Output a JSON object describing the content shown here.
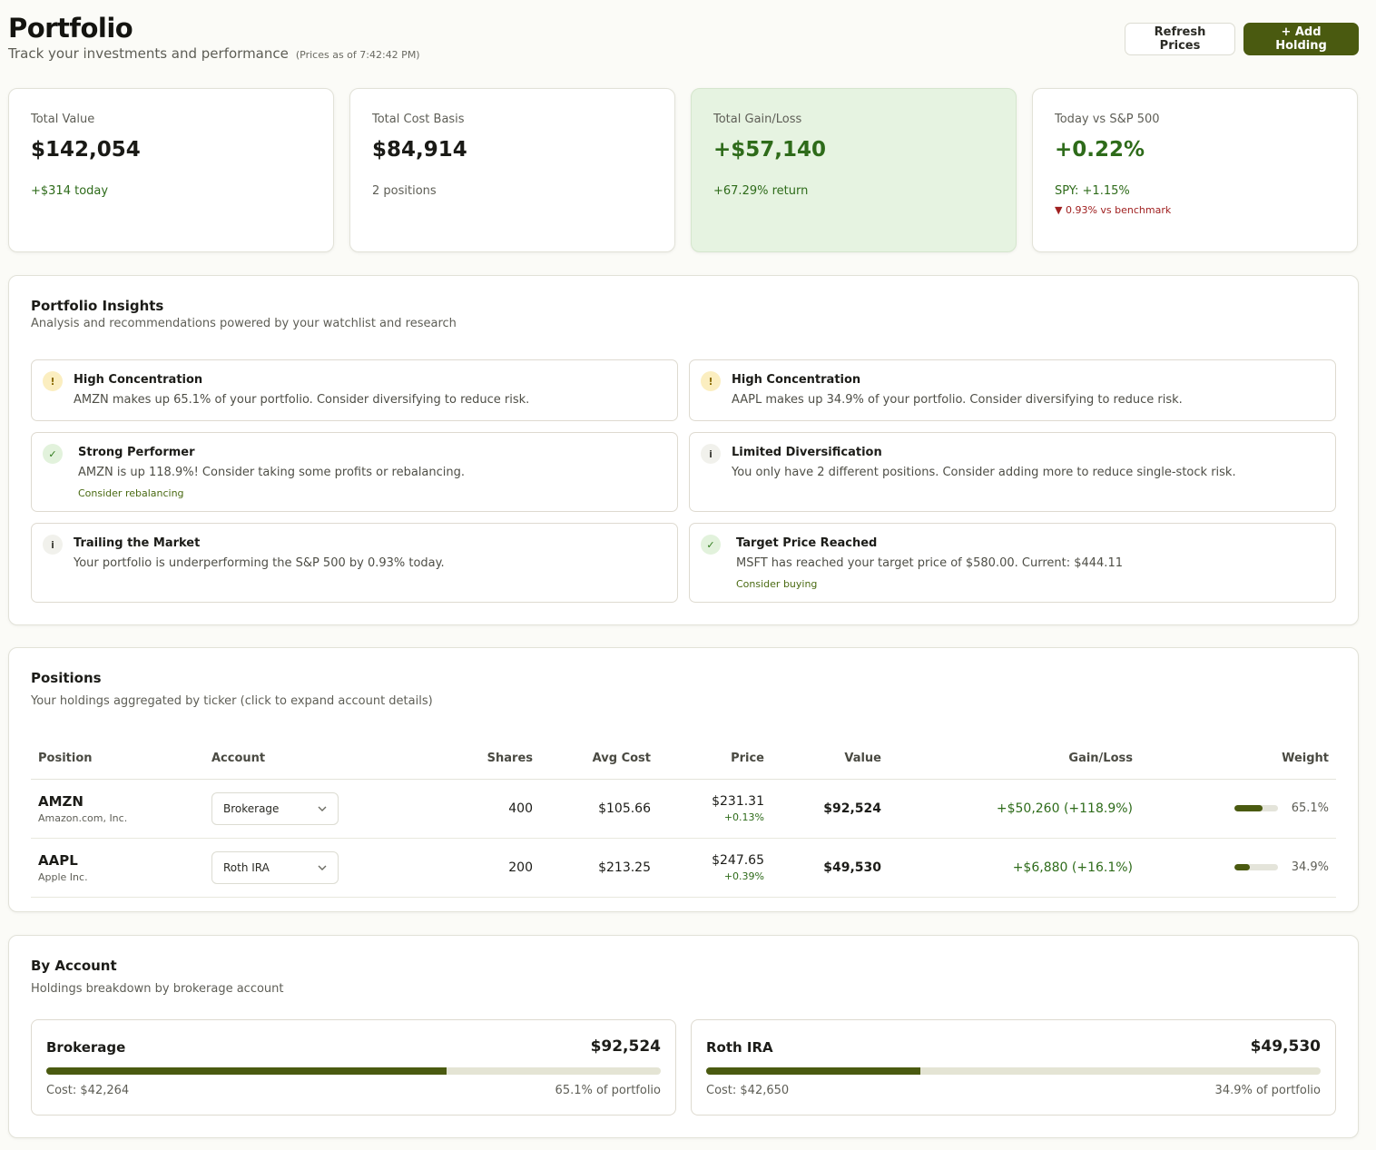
{
  "header": {
    "title": "Portfolio",
    "subtitle": "Track your investments and performance",
    "prices_as_of": "(Prices as of 7:42:42 PM)",
    "refresh_label": "Refresh Prices",
    "add_label": "+ Add Holding"
  },
  "stats": {
    "total_value": {
      "label": "Total Value",
      "value": "$142,054",
      "sub": "+$314 today"
    },
    "cost_basis": {
      "label": "Total Cost Basis",
      "value": "$84,914",
      "sub": "2 positions"
    },
    "gain_loss": {
      "label": "Total Gain/Loss",
      "value": "+$57,140",
      "sub": "+67.29% return"
    },
    "vs_sp": {
      "label": "Today vs S&P 500",
      "value": "+0.22%",
      "sub": "SPY: +1.15%",
      "sub2": "▼ 0.93% vs benchmark"
    }
  },
  "insights": {
    "title": "Portfolio Insights",
    "subtitle": "Analysis and recommendations powered by your watchlist and research",
    "items": [
      {
        "icon": "!",
        "title": "High Concentration",
        "text": "AMZN makes up 65.1% of your portfolio. Consider diversifying to reduce risk.",
        "action": ""
      },
      {
        "icon": "!",
        "title": "High Concentration",
        "text": "AAPL makes up 34.9% of your portfolio. Consider diversifying to reduce risk.",
        "action": ""
      },
      {
        "icon": "✓",
        "title": "Strong Performer",
        "text": "AMZN is up 118.9%! Consider taking some profits or rebalancing.",
        "action": "Consider rebalancing"
      },
      {
        "icon": "i",
        "title": "Limited Diversification",
        "text": "You only have 2 different positions. Consider adding more to reduce single-stock risk.",
        "action": ""
      },
      {
        "icon": "i",
        "title": "Trailing the Market",
        "text": "Your portfolio is underperforming the S&P 500 by 0.93% today.",
        "action": ""
      },
      {
        "icon": "✓",
        "title": "Target Price Reached",
        "text": "MSFT has reached your target price of $580.00. Current: $444.11",
        "action": "Consider buying"
      }
    ]
  },
  "positions": {
    "title": "Positions",
    "subtitle": "Your holdings aggregated by ticker (click to expand account details)",
    "columns": [
      "Position",
      "Account",
      "Shares",
      "Avg Cost",
      "Price",
      "Value",
      "Gain/Loss",
      "Weight"
    ],
    "rows": [
      {
        "ticker": "AMZN",
        "company": "Amazon.com, Inc.",
        "account": "Brokerage",
        "shares": "400",
        "avg_cost": "$105.66",
        "price": "$231.31",
        "price_change": "+0.13%",
        "value": "$92,524",
        "gain": "+$50,260 (+118.9%)",
        "weight": "65.1%",
        "weight_fraction": 0.651
      },
      {
        "ticker": "AAPL",
        "company": "Apple Inc.",
        "account": "Roth IRA",
        "shares": "200",
        "avg_cost": "$213.25",
        "price": "$247.65",
        "price_change": "+0.39%",
        "value": "$49,530",
        "gain": "+$6,880 (+16.1%)",
        "weight": "34.9%",
        "weight_fraction": 0.349
      }
    ]
  },
  "accounts": {
    "title": "By Account",
    "subtitle": "Holdings breakdown by brokerage account",
    "items": [
      {
        "name": "Brokerage",
        "value": "$92,524",
        "cost": "Cost: $42,264",
        "pct": "65.1% of portfolio",
        "fraction": 0.651
      },
      {
        "name": "Roth IRA",
        "value": "$49,530",
        "cost": "Cost: $42,650",
        "pct": "34.9% of portfolio",
        "fraction": 0.349
      }
    ]
  }
}
